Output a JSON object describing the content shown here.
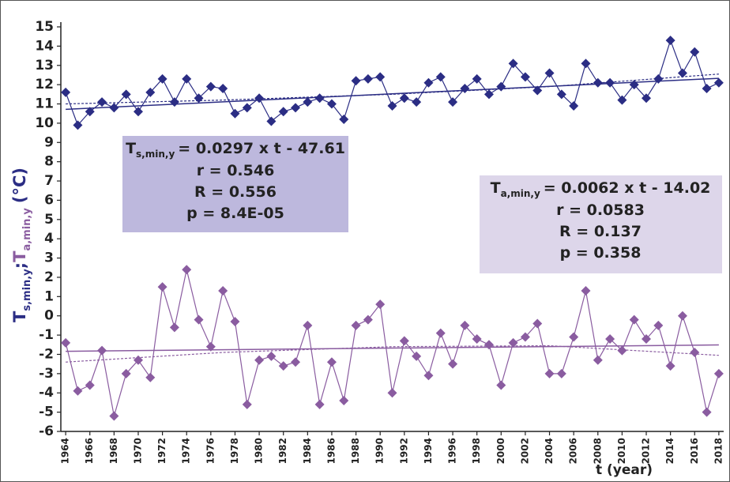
{
  "chart_data": {
    "type": "line",
    "x_label": "t (year)",
    "y_label": {
      "t1": "T",
      "sub1": "s,min,y",
      "sep": ";",
      "t2": "T",
      "sub2": "a,min,y",
      "unit": "(°C)"
    },
    "x": [
      1964,
      1965,
      1966,
      1967,
      1968,
      1969,
      1970,
      1971,
      1972,
      1973,
      1974,
      1975,
      1976,
      1977,
      1978,
      1979,
      1980,
      1981,
      1982,
      1983,
      1984,
      1985,
      1986,
      1987,
      1988,
      1989,
      1990,
      1991,
      1992,
      1993,
      1994,
      1995,
      1996,
      1997,
      1998,
      1999,
      2000,
      2001,
      2002,
      2003,
      2004,
      2005,
      2006,
      2007,
      2008,
      2009,
      2010,
      2011,
      2012,
      2013,
      2014,
      2015,
      2016,
      2017,
      2018
    ],
    "xlim": [
      1963.6,
      2018.4
    ],
    "xticks": [
      1964,
      1966,
      1968,
      1970,
      1972,
      1974,
      1976,
      1978,
      1980,
      1982,
      1984,
      1986,
      1988,
      1990,
      1992,
      1994,
      1996,
      1998,
      2000,
      2002,
      2004,
      2006,
      2008,
      2010,
      2012,
      2014,
      2016,
      2018
    ],
    "ylim": [
      -6,
      15
    ],
    "yticks": [
      -6,
      -5,
      -4,
      -3,
      -2,
      -1,
      0,
      1,
      2,
      3,
      4,
      5,
      6,
      7,
      8,
      9,
      10,
      11,
      12,
      13,
      14,
      15
    ],
    "series": [
      {
        "color": "#2b2d84",
        "values": [
          11.6,
          9.9,
          10.6,
          11.1,
          10.8,
          11.5,
          10.6,
          11.6,
          12.3,
          11.1,
          12.3,
          11.3,
          11.9,
          11.8,
          10.5,
          10.8,
          11.3,
          10.1,
          10.6,
          10.8,
          11.1,
          11.3,
          11.0,
          10.2,
          12.2,
          12.3,
          12.4,
          10.9,
          11.3,
          11.1,
          12.1,
          12.4,
          11.1,
          11.8,
          12.3,
          11.5,
          11.9,
          13.1,
          12.4,
          11.7,
          12.6,
          11.5,
          10.9,
          13.1,
          12.1,
          12.1,
          11.2,
          12.0,
          11.3,
          12.3,
          14.3,
          12.6,
          13.7,
          11.8,
          12.1
        ],
        "trend": {
          "x": [
            1964,
            2018
          ],
          "values": [
            10.72,
            12.33
          ]
        },
        "trend_smooth": {
          "x": [
            1964,
            1977,
            1991,
            2004,
            2018
          ],
          "values": [
            11.0,
            11.2,
            11.5,
            11.9,
            12.55
          ]
        }
      },
      {
        "color": "#8a5ca0",
        "values": [
          -1.4,
          -3.9,
          -3.6,
          -1.8,
          -5.2,
          -3.0,
          -2.3,
          -3.2,
          1.5,
          -0.6,
          2.4,
          -0.2,
          -1.6,
          1.3,
          -0.3,
          -4.6,
          -2.3,
          -2.1,
          -2.6,
          -2.4,
          -0.5,
          -4.6,
          -2.4,
          -4.4,
          -0.5,
          -0.2,
          0.6,
          -4.0,
          -1.3,
          -2.1,
          -3.1,
          -0.9,
          -2.5,
          -0.5,
          -1.2,
          -1.5,
          -3.6,
          -1.4,
          -1.1,
          -0.4,
          -3.0,
          -3.0,
          -1.1,
          1.3,
          -2.3,
          -1.2,
          -1.8,
          -0.2,
          -1.2,
          -0.5,
          -2.6,
          0.0,
          -1.9,
          -5.0,
          -3.0
        ],
        "trend": {
          "x": [
            1964,
            2018
          ],
          "values": [
            -1.84,
            -1.51
          ]
        },
        "trend_smooth": {
          "x": [
            1964,
            1977,
            1991,
            2004,
            2018
          ],
          "values": [
            -2.4,
            -1.9,
            -1.6,
            -1.55,
            -2.05
          ]
        }
      }
    ],
    "annotations": [
      {
        "subject": "T",
        "subscript": "s,min,y",
        "equation": "= 0.0297 x t - 47.61",
        "stats": [
          "r = 0.546",
          "R = 0.556",
          "p = 8.4E-05"
        ],
        "color": "#2b2d84",
        "fill": "#bdb8dd"
      },
      {
        "subject": "T",
        "subscript": "a,min,y",
        "equation": "= 0.0062 x t - 14.02",
        "stats": [
          "r = 0.0583",
          "R = 0.137",
          "p = 0.358"
        ],
        "color": "#8a5ca0",
        "fill": "#ddd6ea"
      }
    ]
  }
}
